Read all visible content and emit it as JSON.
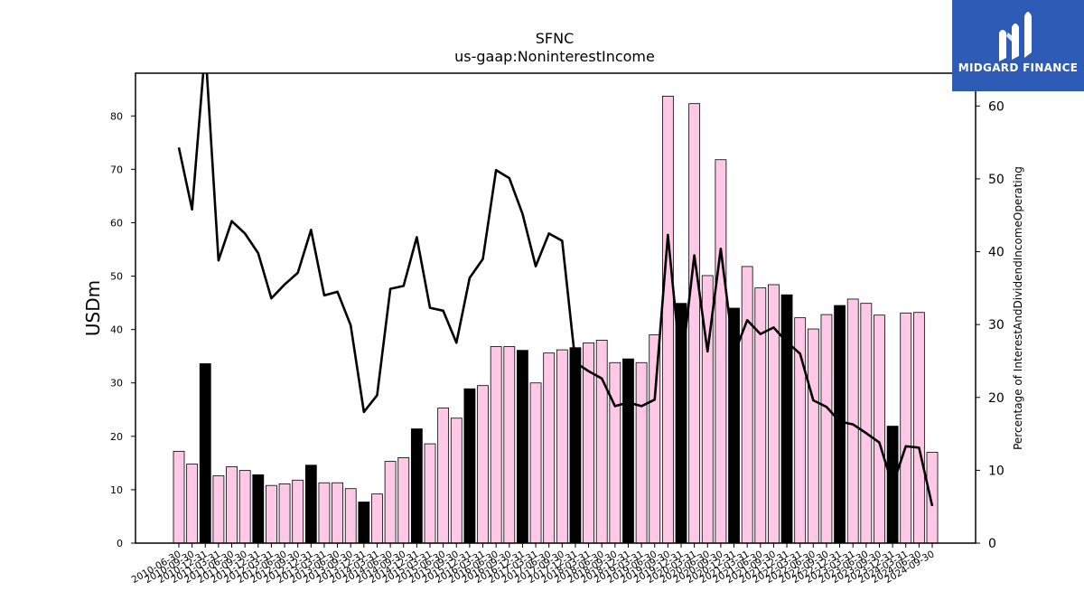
{
  "chart_data": {
    "type": "bar",
    "title": "SFNC",
    "subtitle": "us-gaap:NoninterestIncome",
    "ylabel": "USDm",
    "y2label": "Percentage of InterestAndDividendIncomeOperating",
    "ylim": [
      0,
      88
    ],
    "y2lim": [
      0,
      64.5
    ],
    "yticks": [
      0,
      10,
      20,
      30,
      40,
      50,
      60,
      70,
      80
    ],
    "y2ticks": [
      0,
      10,
      20,
      30,
      40,
      50,
      60
    ],
    "categories": [
      "2010-06-30",
      "2010-09-30",
      "2010-12-31",
      "2011-03-31",
      "2011-06-30",
      "2011-09-30",
      "2011-12-31",
      "2012-03-31",
      "2012-06-30",
      "2012-09-30",
      "2012-12-31",
      "2013-03-31",
      "2013-06-30",
      "2013-09-30",
      "2013-12-31",
      "2014-03-31",
      "2014-06-30",
      "2014-09-30",
      "2014-12-31",
      "2015-03-31",
      "2015-06-30",
      "2015-09-30",
      "2015-12-31",
      "2016-03-31",
      "2016-06-30",
      "2016-09-30",
      "2016-12-31",
      "2017-03-31",
      "2017-06-30",
      "2017-09-30",
      "2017-12-31",
      "2018-03-31",
      "2018-06-30",
      "2018-09-30",
      "2018-12-31",
      "2019-03-31",
      "2019-06-30",
      "2019-09-30",
      "2019-12-31",
      "2020-03-31",
      "2020-06-30",
      "2020-09-30",
      "2020-12-31",
      "2021-03-31",
      "2021-06-30",
      "2021-09-30",
      "2021-12-31",
      "2022-03-31",
      "2022-06-30",
      "2022-09-30",
      "2022-12-31",
      "2023-03-31",
      "2023-06-30",
      "2023-09-30",
      "2023-12-31",
      "2024-03-31",
      "2024-06-30",
      "2024-09-30"
    ],
    "series": [
      {
        "type": "bar",
        "axis": "left",
        "values": [
          17.2,
          14.8,
          33.6,
          12.6,
          14.3,
          13.6,
          12.8,
          10.8,
          11.1,
          11.8,
          14.6,
          11.3,
          11.3,
          10.2,
          7.7,
          9.2,
          15.3,
          16.0,
          21.4,
          18.6,
          25.3,
          23.4,
          28.9,
          29.5,
          36.8,
          36.8,
          36.1,
          30.0,
          35.6,
          36.2,
          36.6,
          37.5,
          38.0,
          33.8,
          34.5,
          33.8,
          39.0,
          83.7,
          44.9,
          82.3,
          50.1,
          71.8,
          44.0,
          51.8,
          47.8,
          48.4,
          46.5,
          42.2,
          40.1,
          42.8,
          44.5,
          45.7,
          44.9,
          42.7,
          21.9,
          43.1,
          43.2,
          17.0
        ],
        "colors": {
          "quarter": "#ffc8e6",
          "year_end": "#000000",
          "edge": "#000000"
        }
      },
      {
        "type": "line",
        "axis": "right",
        "values": [
          54.3,
          45.8,
          68.0,
          38.8,
          44.2,
          42.5,
          39.8,
          33.6,
          35.5,
          37.1,
          43.0,
          34.0,
          34.5,
          29.9,
          18.0,
          20.3,
          34.9,
          35.3,
          42.0,
          32.3,
          31.9,
          27.5,
          36.4,
          39.0,
          51.2,
          50.1,
          45.2,
          38.0,
          42.5,
          41.5,
          24.8,
          23.6,
          22.6,
          18.8,
          19.3,
          18.8,
          19.7,
          42.3,
          23.8,
          39.5,
          26.3,
          40.4,
          25.9,
          30.6,
          28.7,
          29.6,
          27.6,
          26.0,
          19.6,
          18.7,
          16.7,
          16.3,
          15.1,
          13.8,
          7.9,
          13.3,
          13.1,
          5.1
        ],
        "color": "#000000"
      }
    ]
  },
  "logo": {
    "brand": "MIDGARD FINANCE",
    "background": "#2d5bb5",
    "icon": "midgard-m-logo-icon"
  }
}
